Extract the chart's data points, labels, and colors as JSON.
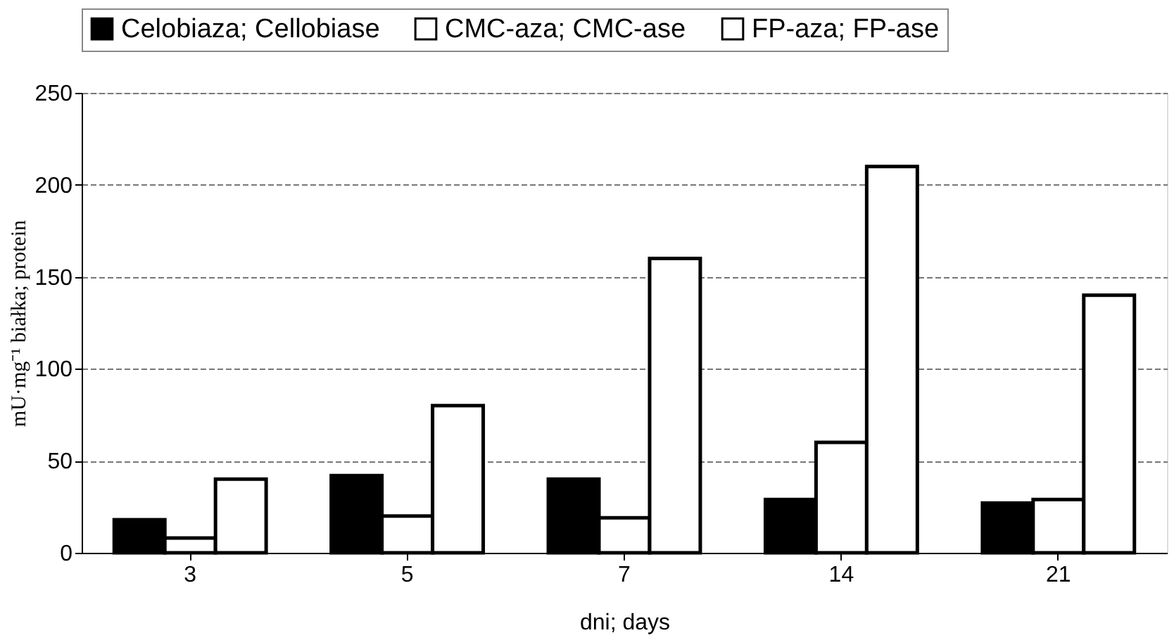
{
  "chart_data": {
    "type": "bar",
    "xlabel": "dni; days",
    "ylabel": "mU·mg⁻¹ białka; protein",
    "categories": [
      "3",
      "5",
      "7",
      "14",
      "21"
    ],
    "series": [
      {
        "name": "Celobiaza; Cellobiase",
        "color": "#000000",
        "values": [
          18,
          42,
          40,
          29,
          27
        ]
      },
      {
        "name": "CMC-aza; CMC-ase",
        "color": "#ffffff",
        "values": [
          8,
          20,
          19,
          60,
          29
        ]
      },
      {
        "name": "FP-aza; FP-ase",
        "color": "#ffffff",
        "values": [
          40,
          80,
          160,
          210,
          140
        ]
      }
    ],
    "ylim": [
      0,
      250
    ],
    "yticks": [
      0,
      50,
      100,
      150,
      200,
      250
    ],
    "grid": "y",
    "legend": "top"
  }
}
